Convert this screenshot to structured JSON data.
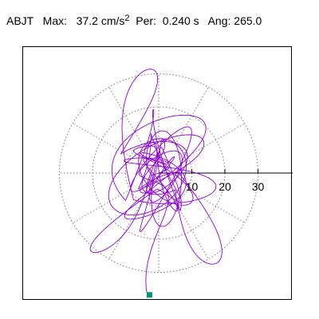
{
  "header": {
    "station": "ABJT",
    "max_label": "Max:",
    "max_value": "37.2",
    "max_unit": "cm/s",
    "max_unit_exp": "2",
    "per_label": "Per:",
    "per_value": "0.240 s",
    "ang_label": "Ang:",
    "ang_value": "265.0"
  },
  "colors": {
    "trace": "#8e00d8",
    "marker": "#009977",
    "grid": "#777777",
    "axis": "#000000",
    "frame": "#000000"
  },
  "chart_data": {
    "type": "scatter",
    "title": "",
    "rings": [
      10,
      20,
      30
    ],
    "tick_labels": [
      "10",
      "20",
      "30"
    ],
    "max_amplitude": 37.2,
    "period_s": 0.24,
    "angle_deg": 265.0,
    "units": "cm/s²",
    "end_point": {
      "x": -2.8,
      "y": -36.8
    },
    "grid": true
  }
}
